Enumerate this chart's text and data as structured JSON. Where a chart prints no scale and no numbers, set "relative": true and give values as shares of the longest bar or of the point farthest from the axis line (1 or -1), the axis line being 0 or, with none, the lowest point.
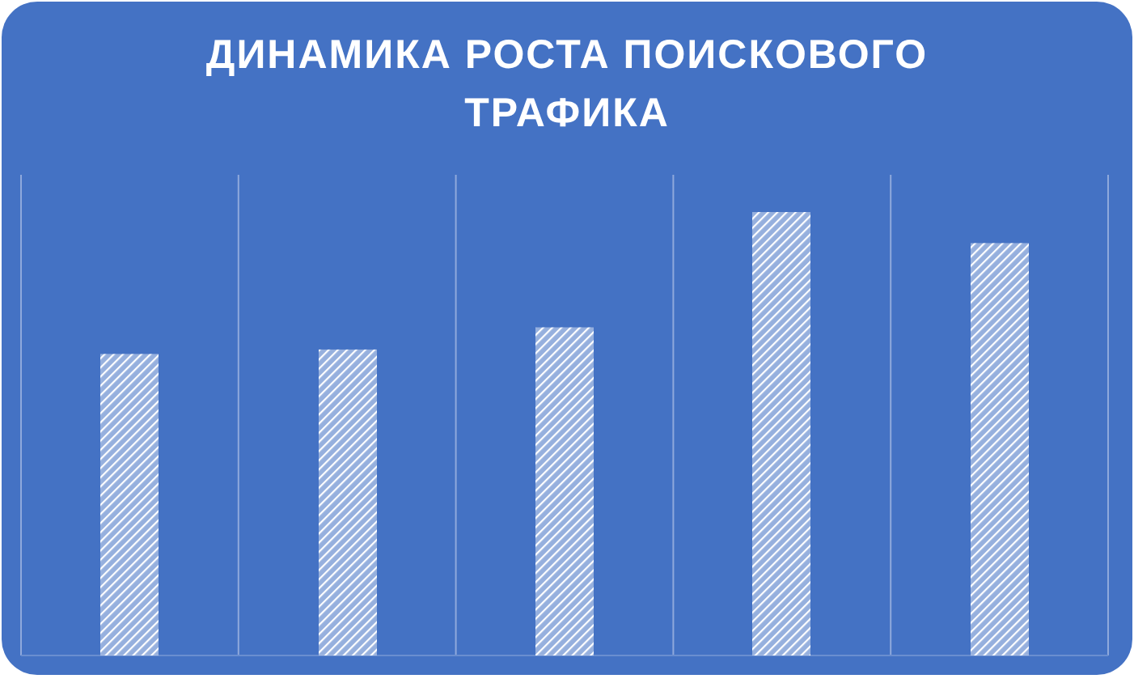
{
  "chart_data": {
    "type": "bar",
    "title": "ДИНАМИКА РОСТА ПОИСКОВОГО ТРАФИКА",
    "relative": true,
    "categories": [
      null,
      null,
      null,
      null,
      null
    ],
    "values": [
      0.68,
      0.69,
      0.74,
      1,
      0.93
    ],
    "color": "#ffffff",
    "grid": "x"
  }
}
